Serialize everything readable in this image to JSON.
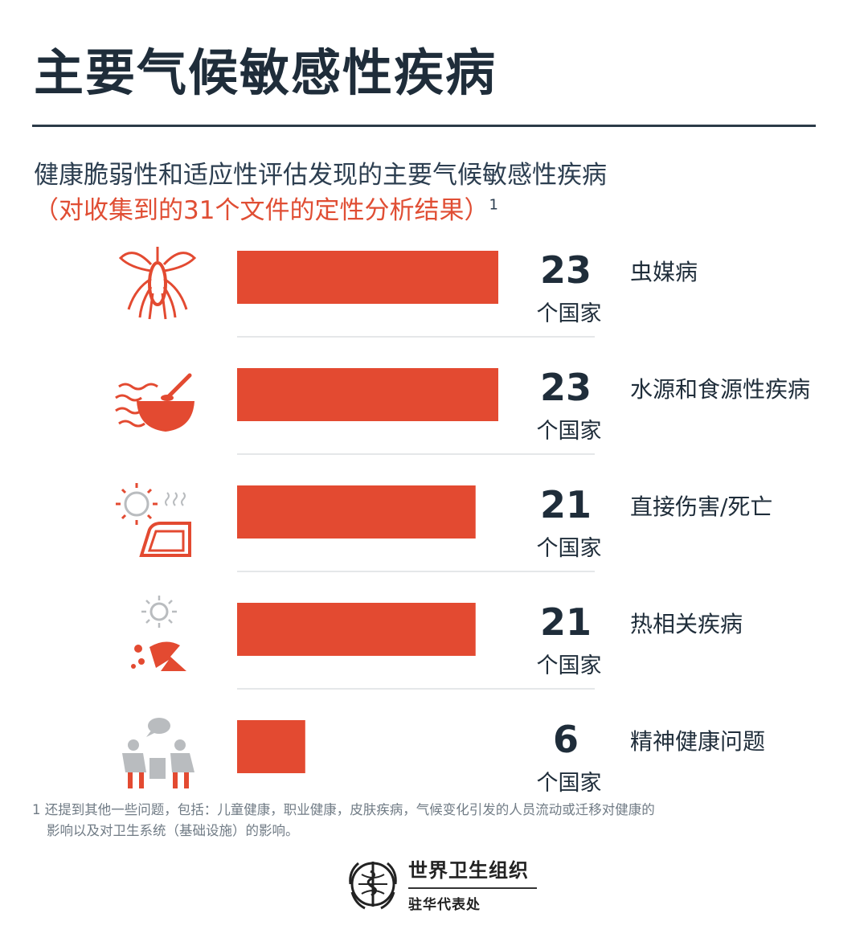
{
  "header": {
    "title": "主要气候敏感性疾病",
    "subtitle": "健康脆弱性和适应性评估发现的主要气候敏感性疾病",
    "subtitle_note": "（对收集到的31个文件的定性分析结果）",
    "footnote_marker": "1"
  },
  "chart_data": {
    "type": "bar",
    "orientation": "horizontal",
    "categories": [
      "虫媒病",
      "水源和食源性疾病",
      "直接伤害/死亡",
      "热相关疾病",
      "精神健康问题"
    ],
    "values": [
      23,
      23,
      21,
      21,
      6
    ],
    "value_unit": "个国家",
    "icons": [
      "mosquito-icon",
      "food-bowl-icon",
      "sun-car-icon",
      "heat-person-icon",
      "people-talking-icon"
    ],
    "bar_color": "#e34a31",
    "xlim": [
      0,
      23
    ]
  },
  "footnote": {
    "line1": "1 还提到其他一些问题，包括：儿童健康，职业健康，皮肤疾病，气候变化引发的人员流动或迁移对健康的",
    "line2": "影响以及对卫生系统（基础设施）的影响。"
  },
  "logo": {
    "name": "世界卫生组织",
    "office": "驻华代表处"
  },
  "colors": {
    "accent": "#e34a31",
    "title": "#1f2d3a",
    "icon_gray": "#b9bcbf"
  }
}
